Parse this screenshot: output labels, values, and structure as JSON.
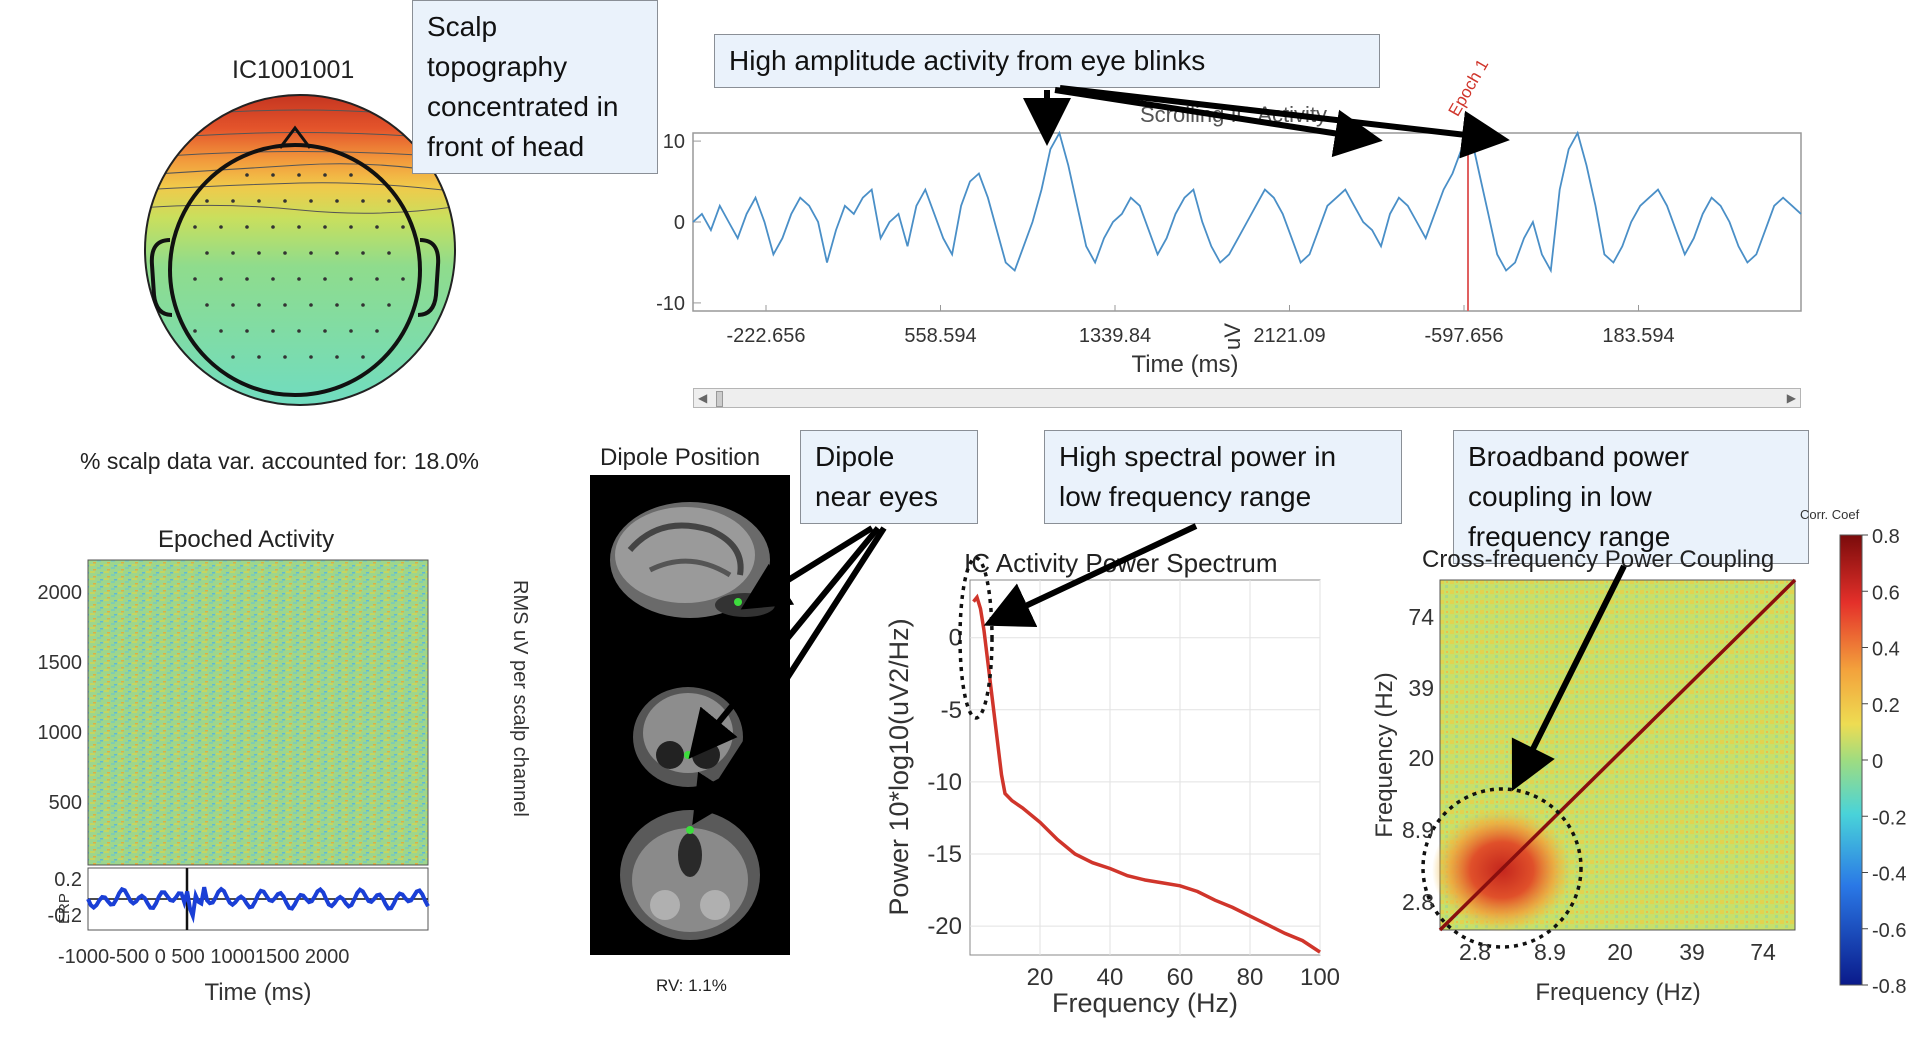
{
  "callouts": {
    "scalp": "Scalp\ntopography\nconcentrated in\nfront of head",
    "blinks": "High amplitude activity from eye blinks",
    "dipole": "Dipole\nnear eyes",
    "spectral": "High spectral power in\nlow frequency range",
    "broadband": "Broadband power\ncoupling in low\nfrequency range"
  },
  "topo": {
    "title": "IC1001001",
    "variance": "% scalp data var. accounted for: 18.0%"
  },
  "epoched": {
    "title": "Epoched Activity",
    "yticks": [
      "2000",
      "1500",
      "1000",
      "500"
    ],
    "erp_label": "ERP",
    "erp_ticks": [
      "0.2",
      "-0.2"
    ],
    "xticks": [
      "-1000",
      "-500",
      "500",
      "1000",
      "1500",
      "2000"
    ],
    "xtick_label_row": "-1000-500  0  500 10001500 2000",
    "xlabel": "Time (ms)",
    "rms_label": "RMS uV per scalp channel"
  },
  "dipole": {
    "title": "Dipole Position",
    "rv": "RV: 1.1%"
  },
  "chart_data": [
    {
      "type": "line",
      "title": "Scrolling IC Activity",
      "epoch_marker": "Epoch 1",
      "xlabel": "Time (ms)",
      "ylabel": "uV",
      "x_tick_labels": [
        "-222.656",
        "558.594",
        "1339.84",
        "2121.09",
        "-597.656",
        "183.594"
      ],
      "y_ticks": [
        -10,
        0,
        10
      ],
      "ylim": [
        -11,
        11
      ],
      "peaks_note_positions": [
        "558.594",
        "2121.09",
        "-597.656"
      ],
      "series": [
        {
          "values": [
            0,
            1,
            -1,
            2,
            0,
            -2,
            1,
            3,
            0,
            -4,
            -2,
            1,
            3,
            2,
            0,
            -5,
            -1,
            2,
            1,
            3,
            4,
            -2,
            0,
            1,
            -3,
            2,
            4,
            1,
            -2,
            -4,
            2,
            5,
            6,
            3,
            -1,
            -5,
            -6,
            -3,
            0,
            4,
            9,
            11,
            7,
            2,
            -3,
            -5,
            -2,
            0,
            1,
            3,
            2,
            -1,
            -4,
            -2,
            1,
            3,
            4,
            0,
            -3,
            -5,
            -4,
            -2,
            0,
            2,
            4,
            3,
            1,
            -2,
            -5,
            -4,
            -1,
            2,
            3,
            4,
            2,
            0,
            -1,
            -3,
            1,
            3,
            2,
            0,
            -2,
            1,
            4,
            6,
            9,
            11,
            6,
            1,
            -4,
            -6,
            -5,
            -2,
            0,
            -4,
            -6,
            4,
            9,
            11,
            7,
            2,
            -4,
            -5,
            -3,
            0,
            2,
            3,
            4,
            2,
            -1,
            -4,
            -2,
            1,
            3,
            2,
            0,
            -3,
            -5,
            -4,
            -1,
            2,
            3,
            2,
            1
          ]
        }
      ]
    },
    {
      "type": "line",
      "title": "IC Activity Power Spectrum",
      "xlabel": "Frequency (Hz)",
      "ylabel": "Power 10*log10(uV2/Hz)",
      "xlim": [
        0,
        100
      ],
      "ylim": [
        -22,
        4
      ],
      "x_ticks": [
        20,
        40,
        60,
        80,
        100
      ],
      "y_ticks": [
        0,
        -5,
        -10,
        -15,
        -20
      ],
      "x": [
        1,
        2,
        3,
        4,
        5,
        6,
        7,
        8,
        9,
        10,
        12,
        15,
        20,
        25,
        30,
        35,
        40,
        45,
        50,
        55,
        60,
        65,
        70,
        75,
        80,
        85,
        90,
        95,
        100
      ],
      "series": [
        {
          "values": [
            2.5,
            2.8,
            2.0,
            0.5,
            -1.5,
            -3.5,
            -5.5,
            -7.5,
            -9.5,
            -10.8,
            -11.3,
            -11.8,
            -12.8,
            -14.0,
            -15.0,
            -15.6,
            -16.0,
            -16.5,
            -16.8,
            -17.0,
            -17.2,
            -17.6,
            -18.2,
            -18.7,
            -19.3,
            -19.9,
            -20.5,
            -21.0,
            -21.8
          ]
        }
      ]
    },
    {
      "type": "heatmap",
      "title": "Cross-frequency Power Coupling",
      "xlabel": "Frequency (Hz)",
      "ylabel": "Frequency (Hz)",
      "x_ticks": [
        "2.8",
        "8.9",
        "20",
        "39",
        "74"
      ],
      "y_ticks": [
        "74",
        "39",
        "20",
        "8.9",
        "2.8"
      ],
      "colorbar_title": "Corr. Coef",
      "colorbar_ticks": [
        "0.8",
        "0.6",
        "0.4",
        "0.2",
        "0",
        "-0.2",
        "-0.4",
        "-0.6",
        "-0.8"
      ]
    }
  ],
  "colors": {
    "trace": "#4a8fc7",
    "spectrum": "#d0352b",
    "erp": "#1a3fd6",
    "callout_bg": "#eaf2fb"
  }
}
